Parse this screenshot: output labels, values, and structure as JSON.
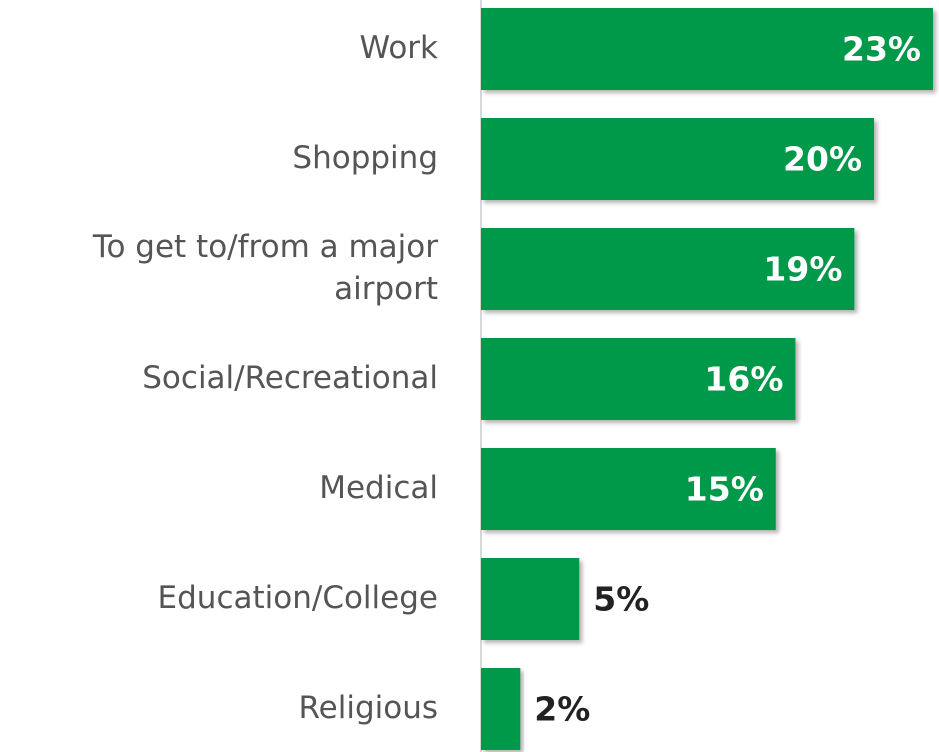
{
  "chart_data": {
    "type": "bar",
    "orientation": "horizontal",
    "categories": [
      "Work",
      "Shopping",
      "To get to/from a major airport",
      "Social/Recreational",
      "Medical",
      "Education/College",
      "Religious"
    ],
    "values": [
      23,
      20,
      19,
      16,
      15,
      5,
      2
    ],
    "value_labels": [
      "23%",
      "20%",
      "19%",
      "16%",
      "15%",
      "5%",
      "2%"
    ],
    "color": "#00984a"
  }
}
